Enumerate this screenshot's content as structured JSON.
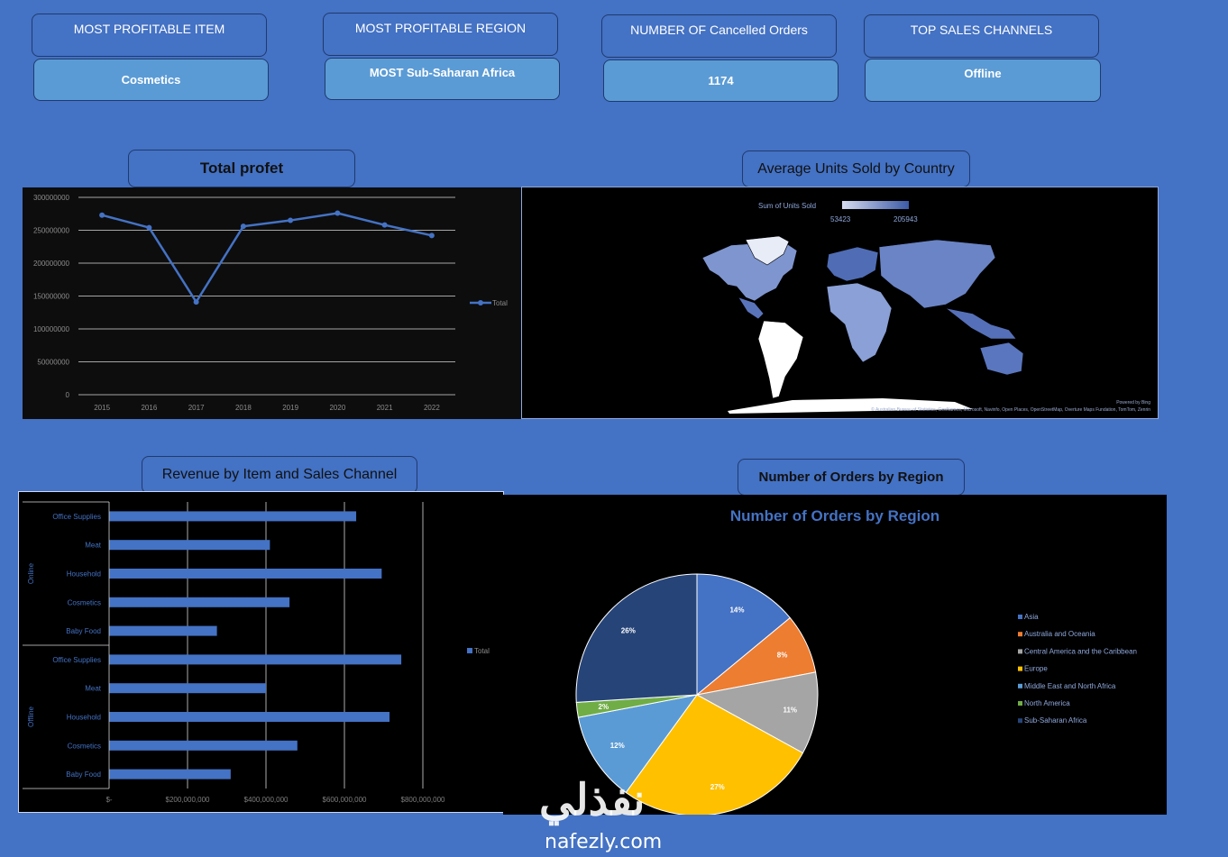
{
  "kpis": [
    {
      "title": "MOST PROFITABLE ITEM",
      "value": "Cosmetics"
    },
    {
      "title": "MOST PROFITABLE REGION",
      "value": "MOST Sub-Saharan Africa"
    },
    {
      "title": "NUMBER OF Cancelled Orders",
      "value": "1174"
    },
    {
      "title": "TOP SALES CHANNELS",
      "value": "Offline"
    }
  ],
  "section_titles": {
    "profit": "Total profet",
    "units": "Average Units Sold by Country",
    "revenue": "Revenue by Item and Sales Channel",
    "orders": "Number of Orders by Region"
  },
  "map": {
    "legend_title": "Sum of Units Sold",
    "legend_min": "53423",
    "legend_max": "205943",
    "powered_by": "Powered by Bing",
    "attribution": "© Australian Bureau of Statistics, GeoNames, Microsoft, Navinfo, Open Places, OpenStreetMap, Overture Maps Fundation, TomTom, Zenrin",
    "colors": {
      "low": "#d6dcf0",
      "high": "#3c5aa6"
    }
  },
  "watermark": {
    "arabic": "نفذلي",
    "latin": "nafezly.com"
  },
  "chart_data": [
    {
      "type": "line",
      "title": "",
      "x": [
        "2015",
        "2016",
        "2017",
        "2018",
        "2019",
        "2020",
        "2021",
        "2022"
      ],
      "series": [
        {
          "name": "Total",
          "values": [
            273000000,
            254000000,
            141000000,
            256000000,
            265000000,
            276000000,
            258000000,
            242000000
          ]
        }
      ],
      "ylim": [
        0,
        300000000
      ],
      "yticks": [
        "0",
        "50000000",
        "100000000",
        "150000000",
        "200000000",
        "250000000",
        "300000000"
      ],
      "grid": true,
      "legend": "right",
      "color": "#4472C4"
    },
    {
      "type": "bar",
      "orientation": "horizontal",
      "title": "",
      "groups": [
        {
          "name": "Online",
          "categories": [
            "Office Supplies",
            "Meat",
            "Household",
            "Cosmetics",
            "Baby Food"
          ],
          "values": [
            630000000,
            410000000,
            695000000,
            460000000,
            275000000
          ]
        },
        {
          "name": "Offline",
          "categories": [
            "Office Supplies",
            "Meat",
            "Household",
            "Cosmetics",
            "Baby Food"
          ],
          "values": [
            745000000,
            400000000,
            715000000,
            480000000,
            310000000
          ]
        }
      ],
      "series": [
        {
          "name": "Total"
        }
      ],
      "xlim": [
        0,
        800000000
      ],
      "xticks": [
        "$-",
        "$200,000,000",
        "$400,000,000",
        "$600,000,000",
        "$800,000,000"
      ],
      "grid": true,
      "legend": "right",
      "color": "#4472C4"
    },
    {
      "type": "pie",
      "title": "Number of Orders by Region",
      "categories": [
        "Asia",
        "Australia and Oceania",
        "Central America and the Caribbean",
        "Europe",
        "Middle East and North Africa",
        "North America",
        "Sub-Saharan Africa"
      ],
      "values": [
        14,
        8,
        11,
        27,
        12,
        2,
        26
      ],
      "labels": [
        "14%",
        "8%",
        "11%",
        "27%",
        "12%",
        "2%",
        "26%"
      ],
      "colors": [
        "#4472C4",
        "#ED7D31",
        "#A5A5A5",
        "#FFC000",
        "#5B9BD5",
        "#70AD47",
        "#264478"
      ],
      "legend": "right"
    }
  ]
}
